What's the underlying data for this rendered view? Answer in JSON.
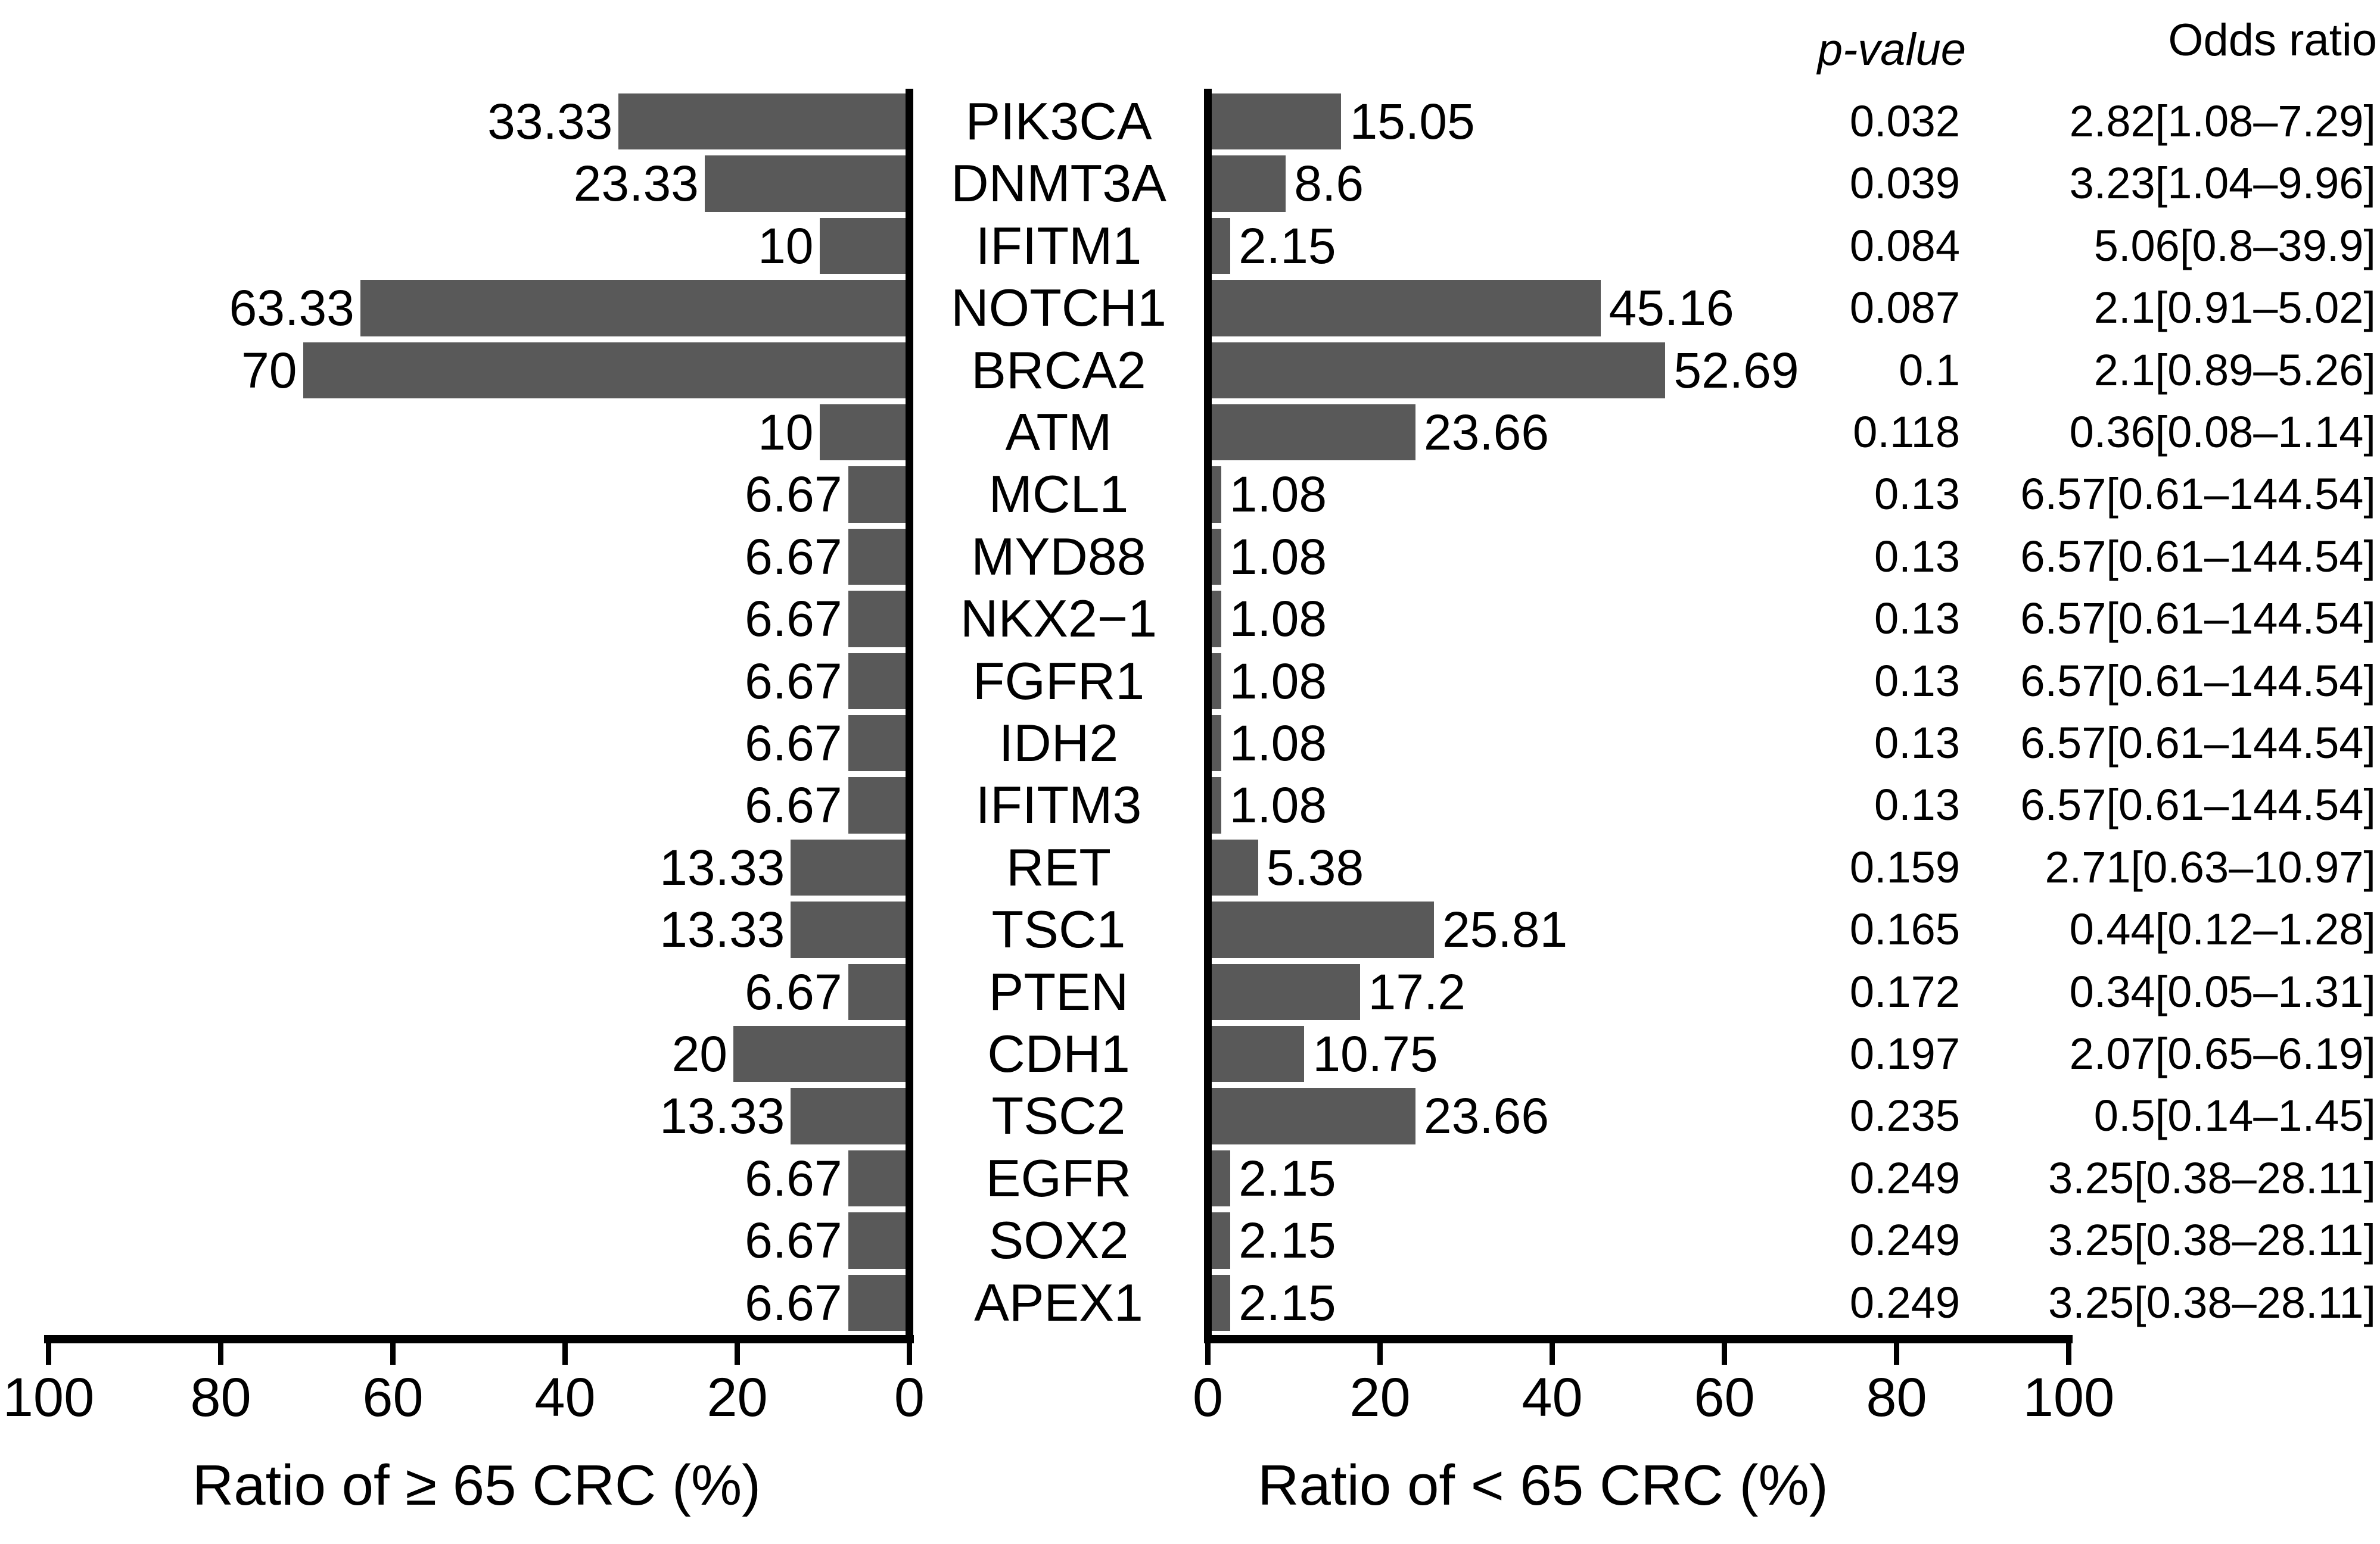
{
  "chart_data": {
    "type": "bar",
    "layout": "mirrored-horizontal",
    "bar_color": "#595959",
    "text_color": "#000000",
    "grid": false,
    "legend": null,
    "left_axis": {
      "label": "Ratio of ≥ 65 CRC (%)",
      "ticks": [
        100,
        80,
        60,
        40,
        20,
        0
      ],
      "range": [
        0,
        100
      ],
      "direction": "right-to-left"
    },
    "right_axis": {
      "label": "Ratio of < 65 CRC (%)",
      "ticks": [
        0,
        20,
        40,
        60,
        80,
        100
      ],
      "range": [
        0,
        100
      ],
      "direction": "left-to-right"
    },
    "columns": {
      "p_value": "p-value",
      "odds_ratio": "Odds ratio"
    },
    "rows": [
      {
        "gene": "PIK3CA",
        "ge65": 33.33,
        "ge65_label": "33.33",
        "lt65": 15.05,
        "lt65_label": "15.05",
        "p_value": "0.032",
        "odds_ratio": "2.82[1.08–7.29]"
      },
      {
        "gene": "DNMT3A",
        "ge65": 23.33,
        "ge65_label": "23.33",
        "lt65": 8.6,
        "lt65_label": "8.6",
        "p_value": "0.039",
        "odds_ratio": "3.23[1.04–9.96]"
      },
      {
        "gene": "IFITM1",
        "ge65": 10,
        "ge65_label": "10",
        "lt65": 2.15,
        "lt65_label": "2.15",
        "p_value": "0.084",
        "odds_ratio": "5.06[0.8–39.9]"
      },
      {
        "gene": "NOTCH1",
        "ge65": 63.33,
        "ge65_label": "63.33",
        "lt65": 45.16,
        "lt65_label": "45.16",
        "p_value": "0.087",
        "odds_ratio": "2.1[0.91–5.02]"
      },
      {
        "gene": "BRCA2",
        "ge65": 70,
        "ge65_label": "70",
        "lt65": 52.69,
        "lt65_label": "52.69",
        "p_value": "0.1",
        "odds_ratio": "2.1[0.89–5.26]"
      },
      {
        "gene": "ATM",
        "ge65": 10,
        "ge65_label": "10",
        "lt65": 23.66,
        "lt65_label": "23.66",
        "p_value": "0.118",
        "odds_ratio": "0.36[0.08–1.14]"
      },
      {
        "gene": "MCL1",
        "ge65": 6.67,
        "ge65_label": "6.67",
        "lt65": 1.08,
        "lt65_label": "1.08",
        "p_value": "0.13",
        "odds_ratio": "6.57[0.61–144.54]"
      },
      {
        "gene": "MYD88",
        "ge65": 6.67,
        "ge65_label": "6.67",
        "lt65": 1.08,
        "lt65_label": "1.08",
        "p_value": "0.13",
        "odds_ratio": "6.57[0.61–144.54]"
      },
      {
        "gene": "NKX2−1",
        "ge65": 6.67,
        "ge65_label": "6.67",
        "lt65": 1.08,
        "lt65_label": "1.08",
        "p_value": "0.13",
        "odds_ratio": "6.57[0.61–144.54]"
      },
      {
        "gene": "FGFR1",
        "ge65": 6.67,
        "ge65_label": "6.67",
        "lt65": 1.08,
        "lt65_label": "1.08",
        "p_value": "0.13",
        "odds_ratio": "6.57[0.61–144.54]"
      },
      {
        "gene": "IDH2",
        "ge65": 6.67,
        "ge65_label": "6.67",
        "lt65": 1.08,
        "lt65_label": "1.08",
        "p_value": "0.13",
        "odds_ratio": "6.57[0.61–144.54]"
      },
      {
        "gene": "IFITM3",
        "ge65": 6.67,
        "ge65_label": "6.67",
        "lt65": 1.08,
        "lt65_label": "1.08",
        "p_value": "0.13",
        "odds_ratio": "6.57[0.61–144.54]"
      },
      {
        "gene": "RET",
        "ge65": 13.33,
        "ge65_label": "13.33",
        "lt65": 5.38,
        "lt65_label": "5.38",
        "p_value": "0.159",
        "odds_ratio": "2.71[0.63–10.97]"
      },
      {
        "gene": "TSC1",
        "ge65": 13.33,
        "ge65_label": "13.33",
        "lt65": 25.81,
        "lt65_label": "25.81",
        "p_value": "0.165",
        "odds_ratio": "0.44[0.12–1.28]"
      },
      {
        "gene": "PTEN",
        "ge65": 6.67,
        "ge65_label": "6.67",
        "lt65": 17.2,
        "lt65_label": "17.2",
        "p_value": "0.172",
        "odds_ratio": "0.34[0.05–1.31]"
      },
      {
        "gene": "CDH1",
        "ge65": 20,
        "ge65_label": "20",
        "lt65": 10.75,
        "lt65_label": "10.75",
        "p_value": "0.197",
        "odds_ratio": "2.07[0.65–6.19]"
      },
      {
        "gene": "TSC2",
        "ge65": 13.33,
        "ge65_label": "13.33",
        "lt65": 23.66,
        "lt65_label": "23.66",
        "p_value": "0.235",
        "odds_ratio": "0.5[0.14–1.45]"
      },
      {
        "gene": "EGFR",
        "ge65": 6.67,
        "ge65_label": "6.67",
        "lt65": 2.15,
        "lt65_label": "2.15",
        "p_value": "0.249",
        "odds_ratio": "3.25[0.38–28.11]"
      },
      {
        "gene": "SOX2",
        "ge65": 6.67,
        "ge65_label": "6.67",
        "lt65": 2.15,
        "lt65_label": "2.15",
        "p_value": "0.249",
        "odds_ratio": "3.25[0.38–28.11]"
      },
      {
        "gene": "APEX1",
        "ge65": 6.67,
        "ge65_label": "6.67",
        "lt65": 2.15,
        "lt65_label": "2.15",
        "p_value": "0.249",
        "odds_ratio": "3.25[0.38–28.11]"
      }
    ]
  }
}
